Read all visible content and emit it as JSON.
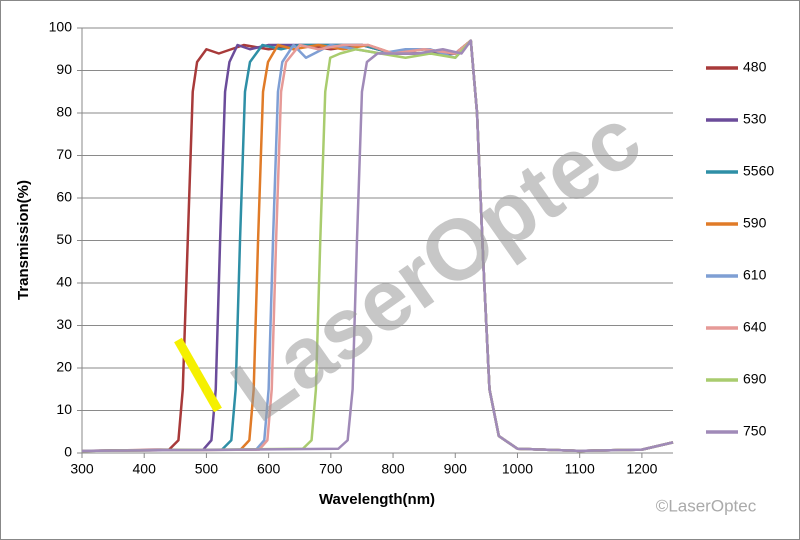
{
  "chart_data": {
    "type": "line",
    "xlabel": "Wavelength(nm)",
    "ylabel": "Transmission(%)",
    "watermark": "LaserOptec",
    "copyright": "©LaserOptec",
    "xlim": [
      300,
      1250
    ],
    "xticks": [
      300,
      400,
      500,
      600,
      700,
      800,
      900,
      1000,
      1100,
      1200
    ],
    "ylim": [
      0,
      100
    ],
    "yticks": [
      0,
      10,
      20,
      30,
      40,
      50,
      60,
      70,
      80,
      90,
      100
    ],
    "grid": true,
    "legend": "right",
    "series": [
      {
        "name": "480",
        "color": "#a83a3a",
        "x": [
          300,
          440,
          455,
          462,
          470,
          478,
          485,
          500,
          520,
          560,
          600,
          650,
          700,
          750,
          800,
          850,
          900,
          925,
          935,
          945,
          955,
          970,
          1000,
          1100,
          1200,
          1250
        ],
        "values": [
          0.5,
          0.8,
          3,
          15,
          50,
          85,
          92,
          95,
          94,
          96,
          95,
          96,
          95,
          96,
          94,
          94,
          94,
          97,
          80,
          45,
          15,
          4,
          1,
          0.5,
          0.8,
          2.5
        ]
      },
      {
        "name": "530",
        "color": "#6b4c9a",
        "x": [
          300,
          495,
          508,
          515,
          522,
          530,
          537,
          550,
          570,
          600,
          650,
          700,
          750,
          800,
          850,
          900,
          925,
          935,
          945,
          955,
          970,
          1000,
          1100,
          1200,
          1250
        ],
        "values": [
          0.5,
          0.8,
          3,
          15,
          50,
          85,
          92,
          96,
          95,
          96,
          96,
          96,
          96,
          94,
          94,
          94,
          97,
          80,
          45,
          15,
          4,
          1,
          0.5,
          0.8,
          2.5
        ]
      },
      {
        "name": "5560",
        "color": "#2e8fa6",
        "x": [
          300,
          525,
          540,
          547,
          554,
          562,
          570,
          590,
          620,
          650,
          700,
          750,
          800,
          850,
          900,
          925,
          935,
          945,
          955,
          970,
          1000,
          1100,
          1200,
          1250
        ],
        "values": [
          0.5,
          0.8,
          3,
          15,
          50,
          85,
          92,
          96,
          95,
          96,
          96,
          96,
          94,
          95,
          94,
          97,
          80,
          45,
          15,
          4,
          1,
          0.5,
          0.8,
          2.5
        ]
      },
      {
        "name": "590",
        "color": "#e07b28",
        "x": [
          300,
          555,
          569,
          576,
          583,
          591,
          599,
          615,
          640,
          680,
          720,
          760,
          800,
          850,
          900,
          925,
          935,
          945,
          955,
          970,
          1000,
          1100,
          1200,
          1250
        ],
        "values": [
          0.5,
          0.8,
          3,
          15,
          50,
          85,
          92,
          96,
          95,
          96,
          95,
          96,
          94,
          95,
          94,
          97,
          80,
          45,
          15,
          4,
          1,
          0.5,
          0.8,
          2.5
        ]
      },
      {
        "name": "610",
        "color": "#7f9fd4",
        "x": [
          300,
          580,
          593,
          600,
          607,
          615,
          622,
          640,
          660,
          700,
          740,
          780,
          820,
          860,
          900,
          925,
          935,
          945,
          955,
          970,
          1000,
          1100,
          1200,
          1250
        ],
        "values": [
          0.5,
          0.8,
          3,
          15,
          50,
          85,
          92,
          96,
          93,
          96,
          95,
          94,
          95,
          95,
          93,
          97,
          80,
          45,
          15,
          4,
          1,
          0.5,
          0.8,
          2.5
        ]
      },
      {
        "name": "640",
        "color": "#e69a97",
        "x": [
          300,
          585,
          598,
          605,
          612,
          620,
          628,
          650,
          680,
          720,
          760,
          800,
          850,
          900,
          925,
          935,
          945,
          955,
          970,
          1000,
          1100,
          1200,
          1250
        ],
        "values": [
          0.5,
          0.8,
          3,
          15,
          50,
          85,
          92,
          96,
          95,
          96,
          96,
          94,
          95,
          94,
          97,
          80,
          45,
          15,
          4,
          1,
          0.5,
          0.8,
          2.5
        ]
      },
      {
        "name": "690",
        "color": "#a9cc6e",
        "x": [
          300,
          655,
          669,
          676,
          683,
          691,
          699,
          715,
          740,
          780,
          820,
          860,
          900,
          925,
          935,
          945,
          955,
          970,
          1000,
          1100,
          1200,
          1250
        ],
        "values": [
          0.5,
          1,
          3,
          15,
          50,
          85,
          93,
          94,
          95,
          94,
          93,
          94,
          93,
          97,
          80,
          45,
          15,
          4,
          1,
          0.5,
          0.8,
          2.5
        ]
      },
      {
        "name": "750",
        "color": "#a08ab8",
        "x": [
          300,
          712,
          727,
          735,
          742,
          750,
          758,
          775,
          800,
          840,
          880,
          910,
          925,
          935,
          945,
          955,
          970,
          1000,
          1100,
          1200,
          1250
        ],
        "values": [
          0.5,
          1,
          3,
          15,
          50,
          85,
          92,
          94,
          94,
          94,
          95,
          94,
          97,
          80,
          45,
          15,
          4,
          1,
          0.5,
          0.8,
          2.5
        ]
      }
    ]
  }
}
